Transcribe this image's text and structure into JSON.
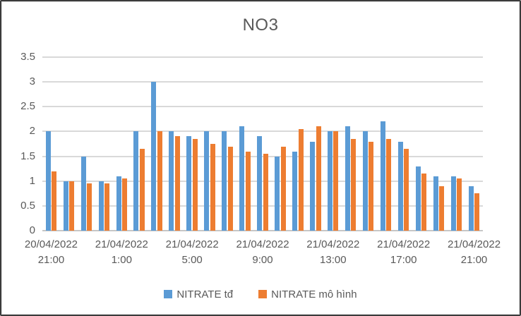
{
  "frame": {
    "background": "#ffffff",
    "border_color": "#3b3b3b"
  },
  "chart_data": {
    "type": "bar",
    "title": "NO3",
    "title_color": "#595959",
    "axis_text_color": "#595959",
    "gridline_color": "#d9d9d9",
    "axis_line_color": "#c6c6c6",
    "grid": true,
    "legend_position": "bottom",
    "n_points": 25,
    "y_axis": {
      "min": 0,
      "max": 3.5,
      "step": 0.5,
      "tick_labels": [
        "3.5",
        "3",
        "2.5",
        "2",
        "1.5",
        "1",
        "0.5",
        "0"
      ]
    },
    "x_axis": {
      "tick_labels": [
        {
          "index": 0,
          "date": "20/04/2022",
          "time": "21:00"
        },
        {
          "index": 4,
          "date": "21/04/2022",
          "time": "1:00"
        },
        {
          "index": 8,
          "date": "21/04/2022",
          "time": "5:00"
        },
        {
          "index": 12,
          "date": "21/04/2022",
          "time": "9:00"
        },
        {
          "index": 16,
          "date": "21/04/2022",
          "time": "13:00"
        },
        {
          "index": 20,
          "date": "21/04/2022",
          "time": "17:00"
        },
        {
          "index": 24,
          "date": "21/04/2022",
          "time": "21:00"
        }
      ]
    },
    "series": [
      {
        "name": "NITRATE tđ",
        "color": "#5b9bd5",
        "values": [
          2,
          1,
          1.5,
          1,
          1.1,
          2,
          3,
          2,
          1.9,
          2,
          2,
          2.1,
          1.9,
          1.5,
          1.6,
          1.8,
          2,
          2.1,
          2,
          2.2,
          1.8,
          1.3,
          1.1,
          1.1,
          0.9
        ]
      },
      {
        "name": "NITRATE mô hình",
        "color": "#ed7d31",
        "values": [
          1.2,
          1,
          0.95,
          0.95,
          1.05,
          1.65,
          2,
          1.9,
          1.85,
          1.75,
          1.7,
          1.6,
          1.55,
          1.7,
          2.05,
          2.1,
          2,
          1.85,
          1.8,
          1.85,
          1.65,
          1.15,
          0.9,
          1.05,
          0.75
        ]
      }
    ]
  }
}
